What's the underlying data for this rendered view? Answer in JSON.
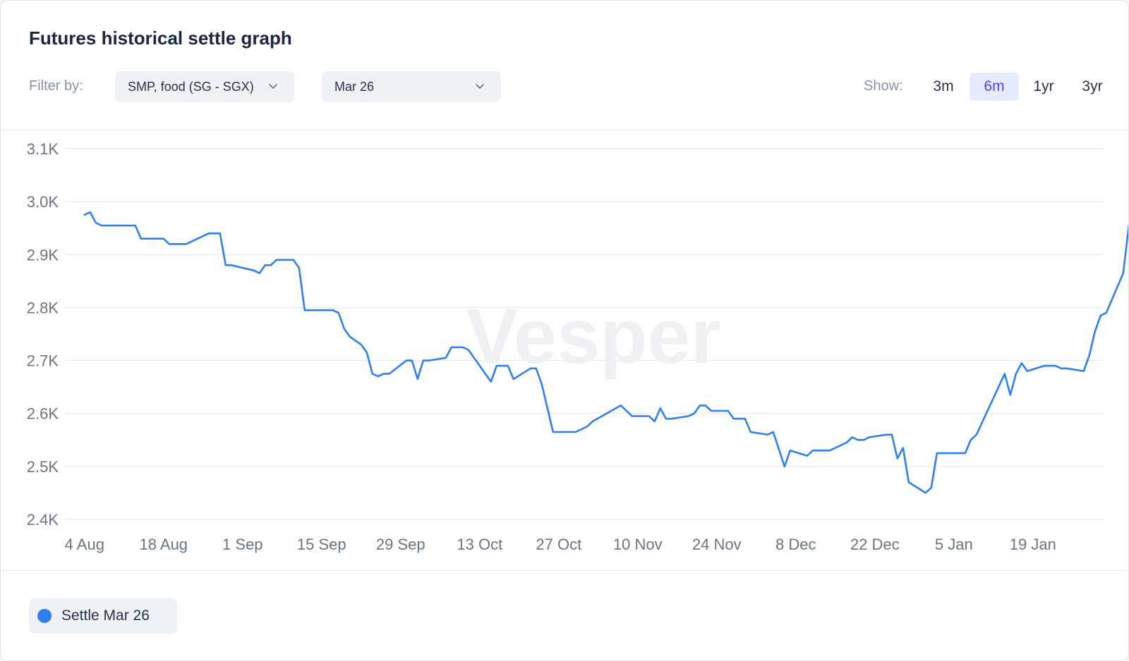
{
  "header": {
    "title": "Futures historical settle graph",
    "filter_label": "Filter by:",
    "product_select": "SMP, food (SG - SGX)",
    "contract_select": "Mar 26",
    "show_label": "Show:",
    "ranges": [
      "3m",
      "6m",
      "1yr",
      "3yr"
    ],
    "active_range": "6m"
  },
  "legend": {
    "label": "Settle Mar 26"
  },
  "colors": {
    "series": "#2f80ed",
    "active_range_bg": "#e6ebff",
    "active_range_text": "#4f46e5"
  },
  "watermark": "Vesper",
  "chart_data": {
    "type": "line",
    "ylim": [
      2400,
      3100
    ],
    "yticks": [
      2400,
      2500,
      2600,
      2700,
      2800,
      2900,
      3000,
      3100
    ],
    "ytick_labels": [
      "2.4K",
      "2.5K",
      "2.6K",
      "2.7K",
      "2.8K",
      "2.9K",
      "3.0K",
      "3.1K"
    ],
    "xtick_labels": [
      "4 Aug",
      "18 Aug",
      "1 Sep",
      "15 Sep",
      "29 Sep",
      "13 Oct",
      "27 Oct",
      "10 Nov",
      "24 Nov",
      "8 Dec",
      "22 Dec",
      "5 Jan",
      "19 Jan"
    ],
    "xlim": [
      -3.6,
      180.4
    ],
    "grid": true,
    "legend_position": "bottom-left",
    "series": [
      {
        "name": "Settle Mar 26",
        "points": [
          [
            0,
            2975
          ],
          [
            1,
            2980
          ],
          [
            2,
            2960
          ],
          [
            3,
            2955
          ],
          [
            6,
            2955
          ],
          [
            9,
            2955
          ],
          [
            10,
            2930
          ],
          [
            14,
            2930
          ],
          [
            15,
            2920
          ],
          [
            18,
            2920
          ],
          [
            22,
            2940
          ],
          [
            24,
            2940
          ],
          [
            25,
            2880
          ],
          [
            26,
            2880
          ],
          [
            28,
            2875
          ],
          [
            30,
            2870
          ],
          [
            31,
            2865
          ],
          [
            32,
            2880
          ],
          [
            33,
            2880
          ],
          [
            34,
            2890
          ],
          [
            37,
            2890
          ],
          [
            38,
            2875
          ],
          [
            39,
            2795
          ],
          [
            44,
            2795
          ],
          [
            45,
            2790
          ],
          [
            46,
            2760
          ],
          [
            47,
            2745
          ],
          [
            49,
            2730
          ],
          [
            50,
            2715
          ],
          [
            51,
            2675
          ],
          [
            52,
            2670
          ],
          [
            53,
            2675
          ],
          [
            54,
            2675
          ],
          [
            57,
            2700
          ],
          [
            58,
            2700
          ],
          [
            59,
            2665
          ],
          [
            60,
            2700
          ],
          [
            61,
            2700
          ],
          [
            64,
            2705
          ],
          [
            65,
            2725
          ],
          [
            67,
            2725
          ],
          [
            68,
            2720
          ],
          [
            72,
            2660
          ],
          [
            73,
            2690
          ],
          [
            75,
            2690
          ],
          [
            76,
            2665
          ],
          [
            79,
            2685
          ],
          [
            80,
            2685
          ],
          [
            81,
            2655
          ],
          [
            83,
            2565
          ],
          [
            87,
            2565
          ],
          [
            89,
            2575
          ],
          [
            90,
            2585
          ],
          [
            95,
            2615
          ],
          [
            97,
            2595
          ],
          [
            100,
            2595
          ],
          [
            101,
            2585
          ],
          [
            102,
            2610
          ],
          [
            103,
            2590
          ],
          [
            104,
            2590
          ],
          [
            107,
            2595
          ],
          [
            108,
            2600
          ],
          [
            109,
            2615
          ],
          [
            110,
            2615
          ],
          [
            111,
            2605
          ],
          [
            114,
            2605
          ],
          [
            115,
            2590
          ],
          [
            117,
            2590
          ],
          [
            118,
            2565
          ],
          [
            121,
            2560
          ],
          [
            122,
            2565
          ],
          [
            124,
            2500
          ],
          [
            125,
            2530
          ],
          [
            128,
            2520
          ],
          [
            129,
            2530
          ],
          [
            132,
            2530
          ],
          [
            135,
            2545
          ],
          [
            136,
            2555
          ],
          [
            137,
            2550
          ],
          [
            138,
            2550
          ],
          [
            139,
            2555
          ],
          [
            142,
            2560
          ],
          [
            143,
            2560
          ],
          [
            144,
            2515
          ],
          [
            145,
            2535
          ],
          [
            146,
            2470
          ],
          [
            149,
            2450
          ],
          [
            150,
            2460
          ],
          [
            151,
            2525
          ],
          [
            156,
            2525
          ],
          [
            157,
            2550
          ],
          [
            158,
            2560
          ],
          [
            163,
            2675
          ],
          [
            164,
            2635
          ],
          [
            165,
            2675
          ],
          [
            166,
            2695
          ],
          [
            167,
            2680
          ],
          [
            170,
            2690
          ],
          [
            172,
            2690
          ],
          [
            173,
            2685
          ],
          [
            174,
            2685
          ],
          [
            177,
            2680
          ],
          [
            178,
            2710
          ],
          [
            179,
            2755
          ],
          [
            180,
            2785
          ],
          [
            181,
            2790
          ],
          [
            184,
            2865
          ],
          [
            185,
            2955
          ]
        ]
      }
    ]
  }
}
